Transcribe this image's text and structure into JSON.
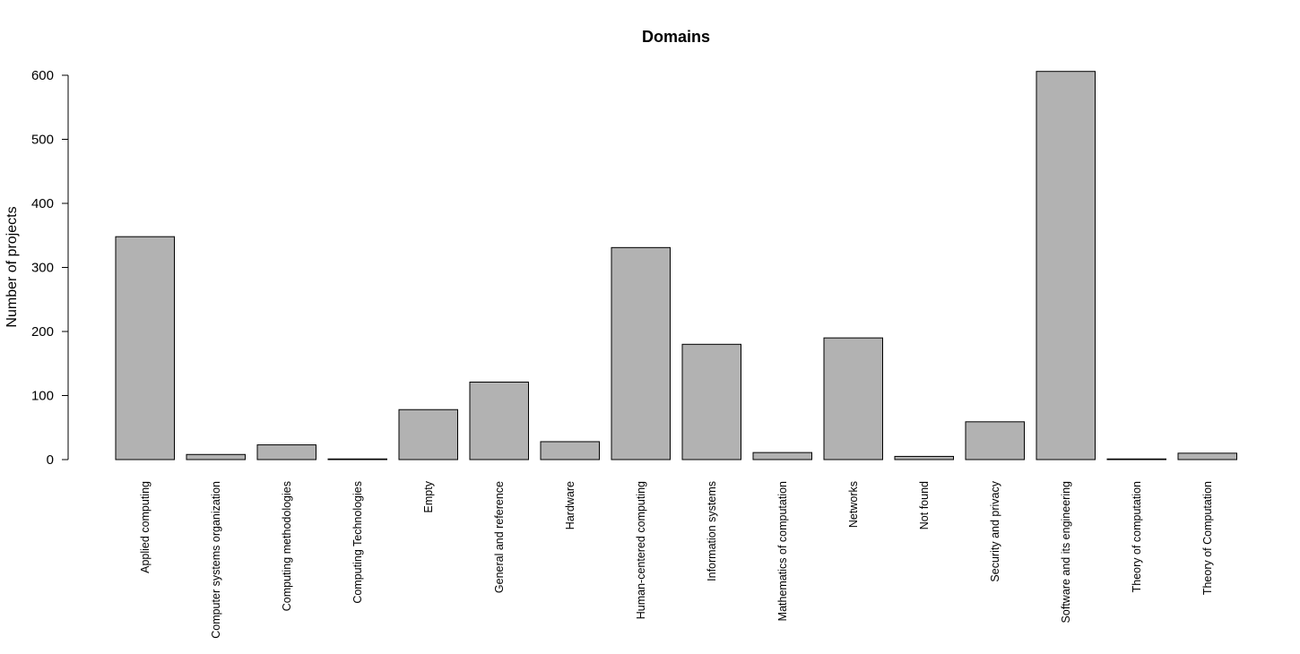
{
  "chart_data": {
    "type": "bar",
    "title": "Domains",
    "xlabel": "",
    "ylabel": "Number of projects",
    "ylim": [
      0,
      600
    ],
    "yticks": [
      0,
      100,
      200,
      300,
      400,
      500,
      600
    ],
    "grid": false,
    "legend": "none",
    "bar_color": "#b2b2b2",
    "categories": [
      "Applied computing",
      "Computer systems organization",
      "Computing methodologies",
      "Computing Technologies",
      "Empty",
      "General and reference",
      "Hardware",
      "Human-centered computing",
      "Information systems",
      "Mathematics of computation",
      "Networks",
      "Not found",
      "Security and privacy",
      "Software and its engineering",
      "Theory of computation",
      "Theory of Computation"
    ],
    "values": [
      348,
      8,
      23,
      1,
      78,
      121,
      28,
      331,
      180,
      11,
      190,
      5,
      59,
      606,
      1,
      10
    ]
  }
}
